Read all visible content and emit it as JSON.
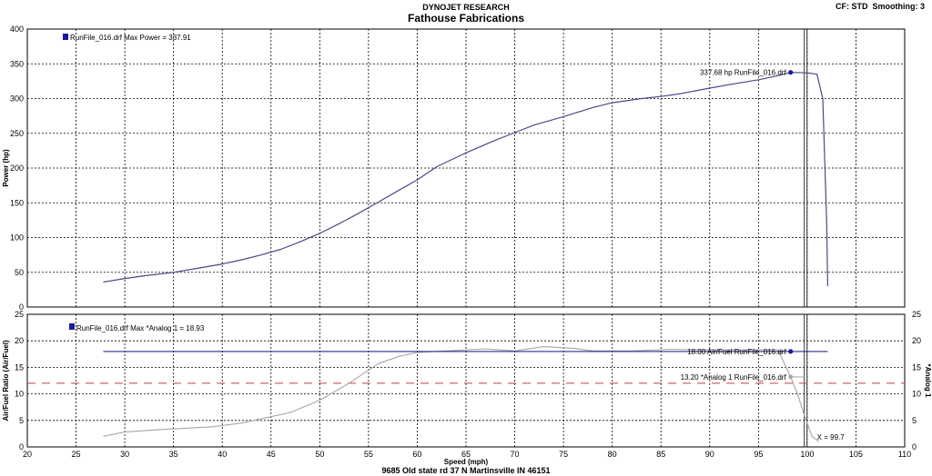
{
  "header": {
    "brand": "DYNOJET RESEARCH",
    "title": "Fathouse Fabrications",
    "cf": "CF: STD",
    "smoothing": "Smoothing: 3"
  },
  "footer": {
    "address": "9685 Old state rd 37 N Martinsville IN 46151"
  },
  "colors": {
    "power_line": "#4a4a86",
    "afr_line": "#2a2a8a",
    "analog_line": "#a6a6a6",
    "ref_line": "#c04040",
    "grid": "#000000",
    "marker": "#1a1aa0"
  },
  "chart_data": [
    {
      "type": "line",
      "panel": "top",
      "ylabel": "Power (hp)",
      "ylim": [
        0,
        400
      ],
      "yticks": [
        0,
        50,
        100,
        150,
        200,
        250,
        300,
        350,
        400
      ],
      "xlim": [
        20,
        110
      ],
      "grid": true,
      "legend": "top-left",
      "legend_text": "RunFile_016.drf Max Power = 337.91",
      "cursor_x": 99.7,
      "series": [
        {
          "name": "RunFile_016.drf",
          "x": [
            27.8,
            30,
            32,
            35,
            38,
            40,
            42,
            44,
            46,
            48,
            50,
            52,
            54,
            56,
            58,
            60,
            62,
            65,
            68,
            70,
            72,
            75,
            78,
            80,
            83,
            85,
            87,
            90,
            92,
            95,
            97,
            98.3,
            100,
            101,
            101.6,
            102,
            102.1
          ],
          "values": [
            36,
            41,
            45,
            50,
            57,
            62,
            68,
            75,
            83,
            94,
            106,
            120,
            135,
            151,
            167,
            183,
            202,
            222,
            240,
            251,
            262,
            274,
            287,
            294,
            300,
            303,
            307,
            315,
            320,
            327,
            333,
            337.68,
            337,
            335,
            300,
            120,
            30
          ]
        }
      ],
      "annotation": {
        "text": "337.68 hp RunFile_016.drf",
        "x": 98.3,
        "y": 337.68
      }
    },
    {
      "type": "line",
      "panel": "bottom",
      "ylabel": "Air/Fuel Ratio (Air/Fuel)",
      "ylabel_right": "*Analog 1",
      "ylim": [
        0,
        25
      ],
      "yticks": [
        0,
        5,
        10,
        15,
        20,
        25
      ],
      "xlim": [
        20,
        110
      ],
      "xticks": [
        20,
        25,
        30,
        35,
        40,
        45,
        50,
        55,
        60,
        65,
        70,
        75,
        80,
        85,
        90,
        95,
        100,
        105,
        110
      ],
      "xlabel": "Speed (mph)",
      "grid": true,
      "legend": "top-left",
      "legend_text": "RunFile_016.drf Max *Analog 1 = 18.93",
      "series": [
        {
          "name": "Air/Fuel RunFile_016.drf",
          "x": [
            27.8,
            98.3,
            102.1
          ],
          "values": [
            18,
            18,
            18
          ]
        },
        {
          "name": "*Analog 1 RunFile_016.drf",
          "x": [
            27.8,
            30,
            33,
            36,
            39,
            42,
            45,
            47,
            50,
            53,
            56,
            58,
            60,
            63,
            67,
            70,
            73,
            76,
            78,
            82,
            86,
            90,
            94,
            97,
            98.3,
            99,
            99.7,
            100.5,
            101.2
          ],
          "values": [
            2,
            2.8,
            3.2,
            3.5,
            3.8,
            4.5,
            5.7,
            6.5,
            8.8,
            12,
            15.7,
            17,
            17.8,
            18.1,
            18.5,
            18.1,
            18.9,
            18.6,
            18.1,
            18.1,
            18.4,
            18.3,
            18.3,
            18.3,
            13.2,
            10,
            6,
            2,
            1
          ]
        }
      ],
      "ref_y": 12,
      "annotations": [
        {
          "text": "18.00 Air/Fuel RunFile_016.drf",
          "x": 98.3,
          "y": 18
        },
        {
          "text": "13.20 *Analog 1 RunFile_016.drf",
          "x": 98.3,
          "y": 13.2
        },
        {
          "text": "X = 99.7",
          "x": 99.7,
          "y": 0.5
        }
      ]
    }
  ]
}
